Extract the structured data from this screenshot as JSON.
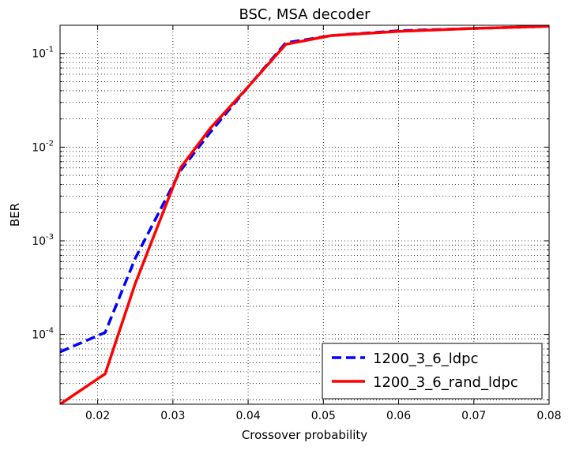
{
  "chart_data": {
    "type": "line",
    "title": "BSC, MSA decoder",
    "xlabel": "Crossover probability",
    "ylabel": "BER",
    "xlim": [
      0.015,
      0.08
    ],
    "ylim": [
      1.8e-05,
      0.2
    ],
    "yscale": "log",
    "grid": true,
    "legend_position": "lower-right",
    "xticks": [
      "0.02",
      "0.03",
      "0.04",
      "0.05",
      "0.06",
      "0.07",
      "0.08"
    ],
    "yticks": [
      {
        "base": "10",
        "exp": "-4"
      },
      {
        "base": "10",
        "exp": "-3"
      },
      {
        "base": "10",
        "exp": "-2"
      },
      {
        "base": "10",
        "exp": "-1"
      }
    ],
    "series": [
      {
        "name": "1200_3_6_ldpc",
        "color": "#0000ff",
        "style": "dashed",
        "x": [
          0.015,
          0.021,
          0.025,
          0.031,
          0.035,
          0.04,
          0.045,
          0.051,
          0.06,
          0.07,
          0.08
        ],
        "y": [
          6.5e-05,
          0.000105,
          0.00065,
          0.0056,
          0.0145,
          0.044,
          0.13,
          0.155,
          0.175,
          0.185,
          0.195
        ]
      },
      {
        "name": "1200_3_6_rand_ldpc",
        "color": "#ff0000",
        "style": "solid",
        "x": [
          0.015,
          0.021,
          0.025,
          0.031,
          0.035,
          0.04,
          0.045,
          0.051,
          0.06,
          0.07,
          0.08
        ],
        "y": [
          1.8e-05,
          3.8e-05,
          0.00035,
          0.006,
          0.016,
          0.044,
          0.125,
          0.155,
          0.172,
          0.185,
          0.195
        ]
      }
    ]
  }
}
